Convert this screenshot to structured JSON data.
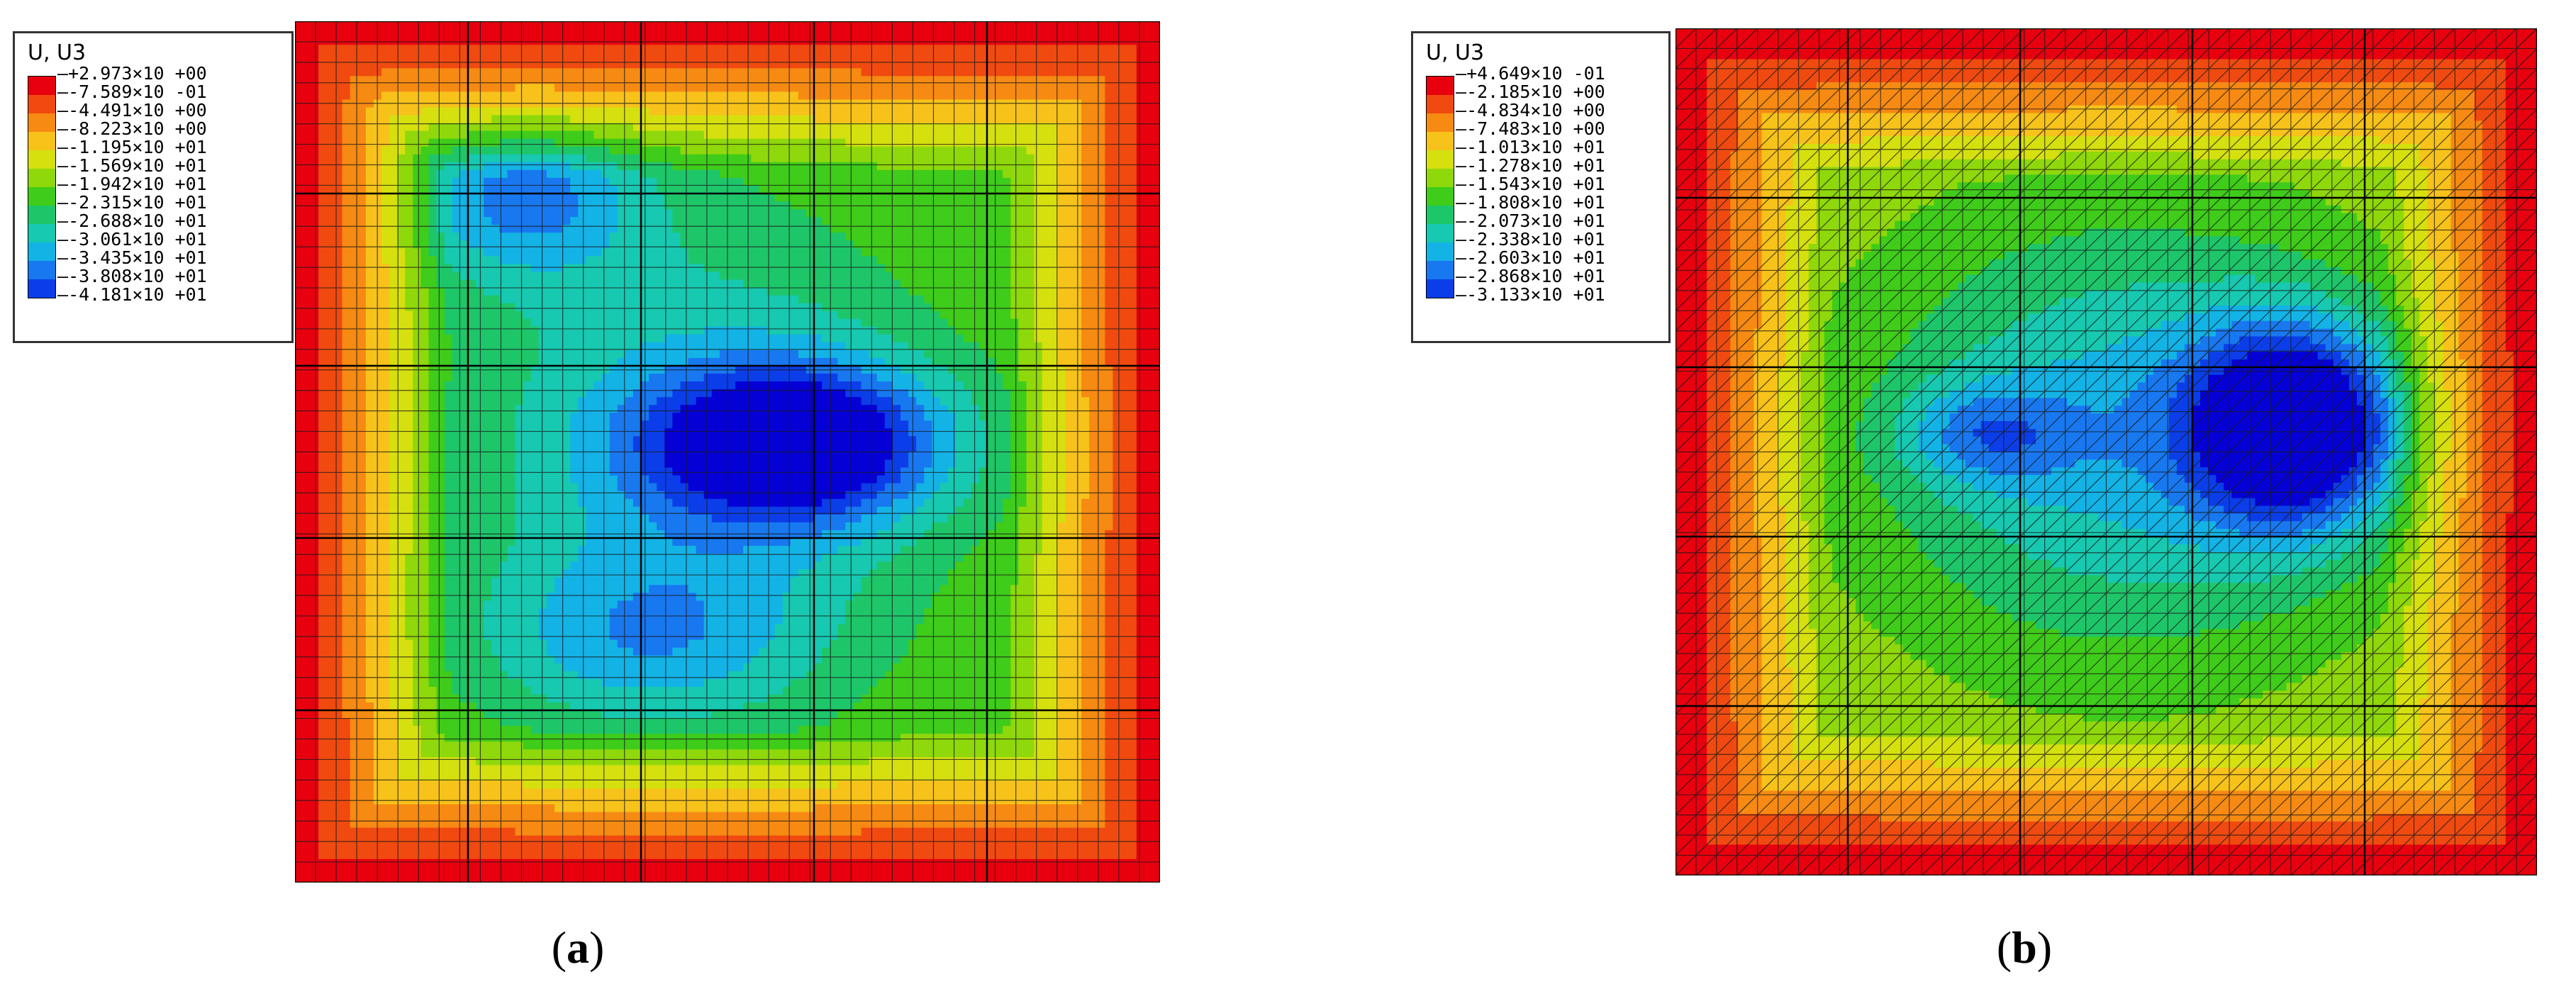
{
  "panels": [
    {
      "id": "a",
      "caption_open": "(",
      "caption_letter": "a",
      "caption_close": ")",
      "legend_title": "U, U3",
      "legend_values": [
        "+2.973×10 +00",
        "-7.589×10 -01",
        "-4.491×10 +00",
        "-8.223×10 +00",
        "-1.195×10 +01",
        "-1.569×10 +01",
        "-1.942×10 +01",
        "-2.315×10 +01",
        "-2.688×10 +01",
        "-3.061×10 +01",
        "-3.435×10 +01",
        "-3.808×10 +01",
        "-4.181×10 +01"
      ]
    },
    {
      "id": "b",
      "caption_open": "(",
      "caption_letter": "b",
      "caption_close": ")",
      "legend_title": "U, U3",
      "legend_values": [
        "+4.649×10 -01",
        "-2.185×10 +00",
        "-4.834×10 +00",
        "-7.483×10 +00",
        "-1.013×10 +01",
        "-1.278×10 +01",
        "-1.543×10 +01",
        "-1.808×10 +01",
        "-2.073×10 +01",
        "-2.338×10 +01",
        "-2.603×10 +01",
        "-2.868×10 +01",
        "-3.133×10 +01"
      ]
    }
  ],
  "colors": {
    "contour_scale": [
      "#e8000f",
      "#f04a10",
      "#f68a12",
      "#f7c21a",
      "#d6e00f",
      "#8fd80b",
      "#3fcc1a",
      "#1ec66a",
      "#17c9b0",
      "#13b3e6",
      "#1878f0",
      "#0b3ee8",
      "#0500d6"
    ],
    "mesh_line": "#1a1a1a"
  }
}
